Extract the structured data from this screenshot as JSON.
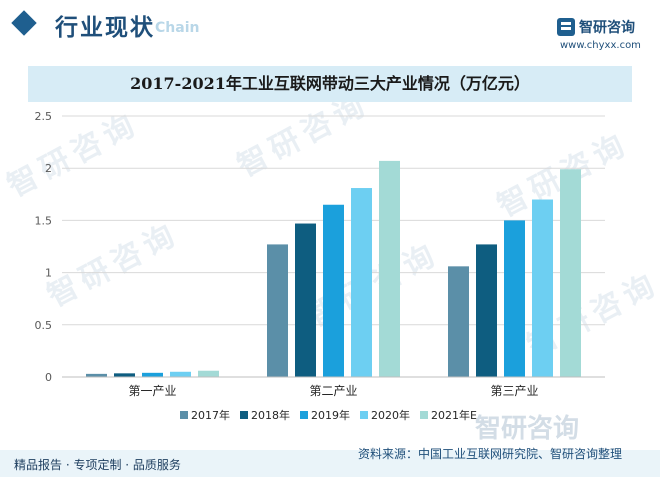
{
  "header": {
    "section_title": "行业现状",
    "section_subtitle": "Chain",
    "logo_name": "智研咨询",
    "logo_url": "www.chyxx.com"
  },
  "watermark": "智研咨询",
  "chart_data": {
    "type": "bar",
    "title": "2017-2021年工业互联网带动三大产业情况（万亿元）",
    "categories": [
      "第一产业",
      "第二产业",
      "第三产业"
    ],
    "series": [
      {
        "name": "2017年",
        "color": "#5b8fa8",
        "values": [
          0.03,
          1.27,
          1.06
        ]
      },
      {
        "name": "2018年",
        "color": "#0e5d80",
        "values": [
          0.035,
          1.47,
          1.27
        ]
      },
      {
        "name": "2019年",
        "color": "#1ba0dc",
        "values": [
          0.04,
          1.65,
          1.5
        ]
      },
      {
        "name": "2020年",
        "color": "#6dcff2",
        "values": [
          0.05,
          1.81,
          1.7
        ]
      },
      {
        "name": "2021年E",
        "color": "#a3dad6",
        "values": [
          0.06,
          2.07,
          1.99
        ]
      }
    ],
    "ylim": [
      0,
      2.5
    ],
    "yticks": [
      "0",
      "0.5",
      "1",
      "1.5",
      "2",
      "2.5"
    ],
    "xlabel": "",
    "ylabel": "",
    "grid": true,
    "legend": "bottom-center"
  },
  "footer": {
    "left": "精品报告 · 专项定制 · 品质服务",
    "source": "资料来源：中国工业互联网研究院、智研咨询整理"
  }
}
